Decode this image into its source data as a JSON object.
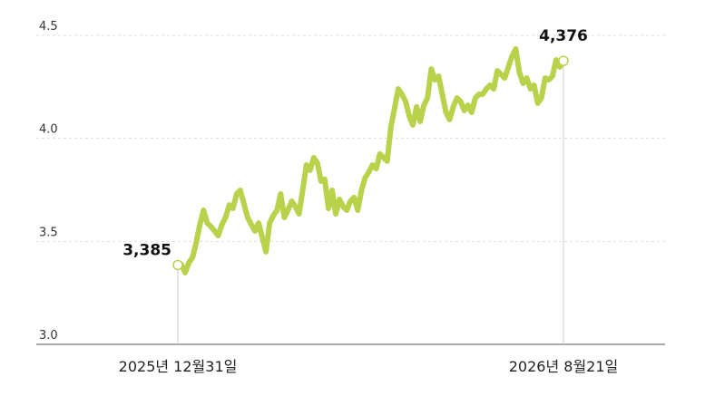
{
  "chart_data": {
    "type": "line",
    "categories": [
      "2025년 12월31일",
      null,
      null,
      null,
      null,
      null,
      null,
      null,
      null,
      null,
      null,
      null,
      null,
      null,
      null,
      null,
      null,
      null,
      null,
      null,
      null,
      null,
      null,
      null,
      null,
      null,
      null,
      null,
      null,
      null,
      null,
      null,
      null,
      null,
      null,
      null,
      null,
      null,
      null,
      null,
      null,
      null,
      null,
      null,
      null,
      null,
      null,
      null,
      null,
      null,
      null,
      null,
      null,
      null,
      null,
      null,
      null,
      null,
      null,
      null,
      null,
      null,
      null,
      null,
      null,
      null,
      null,
      null,
      null,
      null,
      null,
      null,
      null,
      null,
      null,
      null,
      null,
      null,
      null,
      null,
      null,
      null,
      null,
      null,
      null,
      null,
      null,
      null,
      null,
      null,
      null,
      null,
      null,
      null,
      null,
      null,
      null,
      null,
      null,
      null,
      null,
      null,
      null,
      null,
      null,
      "2026년 8월21일"
    ],
    "series": [
      {
        "color": "#b9d24c",
        "values": [
          3.385,
          3.387,
          3.348,
          3.396,
          3.422,
          3.493,
          3.581,
          3.651,
          3.589,
          3.572,
          3.55,
          3.528,
          3.581,
          3.616,
          3.677,
          3.66,
          3.73,
          3.748,
          3.682,
          3.616,
          3.581,
          3.55,
          3.589,
          3.519,
          3.449,
          3.589,
          3.625,
          3.651,
          3.73,
          3.616,
          3.651,
          3.695,
          3.669,
          3.633,
          3.748,
          3.871,
          3.845,
          3.906,
          3.88,
          3.792,
          3.801,
          3.66,
          3.748,
          3.633,
          3.704,
          3.669,
          3.651,
          3.695,
          3.713,
          3.651,
          3.748,
          3.809,
          3.836,
          3.871,
          3.853,
          3.924,
          3.906,
          3.889,
          4.056,
          4.144,
          4.24,
          4.214,
          4.179,
          4.109,
          4.065,
          4.153,
          4.082,
          4.161,
          4.196,
          4.337,
          4.284,
          4.302,
          4.214,
          4.126,
          4.091,
          4.153,
          4.196,
          4.179,
          4.135,
          4.161,
          4.126,
          4.196,
          4.214,
          4.214,
          4.24,
          4.258,
          4.24,
          4.328,
          4.311,
          4.293,
          4.346,
          4.399,
          4.434,
          4.32,
          4.267,
          4.293,
          4.24,
          4.258,
          4.17,
          4.196,
          4.293,
          4.284,
          4.302,
          4.381,
          4.346,
          4.376
        ],
        "value_labels": [
          "3,385",
          null,
          null,
          null,
          null,
          null,
          null,
          null,
          null,
          null,
          null,
          null,
          null,
          null,
          null,
          null,
          null,
          null,
          null,
          null,
          null,
          null,
          null,
          null,
          null,
          null,
          null,
          null,
          null,
          null,
          null,
          null,
          null,
          null,
          null,
          null,
          null,
          null,
          null,
          null,
          null,
          null,
          null,
          null,
          null,
          null,
          null,
          null,
          null,
          null,
          null,
          null,
          null,
          null,
          null,
          null,
          null,
          null,
          null,
          null,
          null,
          null,
          null,
          null,
          null,
          null,
          null,
          null,
          null,
          null,
          null,
          null,
          null,
          null,
          null,
          null,
          null,
          null,
          null,
          null,
          null,
          null,
          null,
          null,
          null,
          null,
          null,
          null,
          null,
          null,
          null,
          null,
          null,
          null,
          null,
          null,
          null,
          null,
          null,
          null,
          null,
          null,
          null,
          null,
          null,
          "4,376"
        ]
      }
    ],
    "ylim": [
      3.0,
      4.5
    ],
    "yticks": [
      {
        "value": 3.0,
        "label": "3.0"
      },
      3.5,
      {
        "value": 4.0,
        "label": "4.0"
      },
      4.5
    ],
    "grid": true
  }
}
